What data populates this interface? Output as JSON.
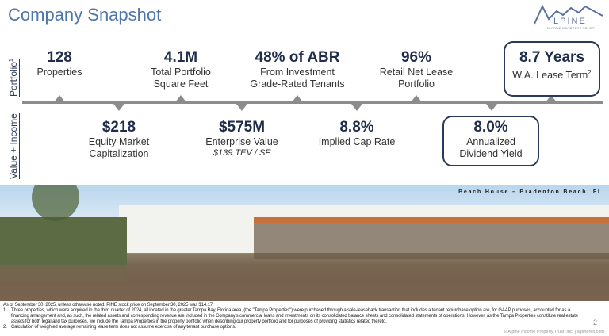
{
  "header": {
    "title": "Company Snapshot",
    "logo_text": "ALPINE",
    "logo_subtitle": "INCOME PROPERTY TRUST"
  },
  "side_labels": {
    "portfolio": "Portfolio",
    "portfolio_sup": "1",
    "value_income": "Value + Income"
  },
  "portfolio_metrics": [
    {
      "value": "128",
      "label": "Properties"
    },
    {
      "value": "4.1M",
      "label": "Total Portfolio Square Feet"
    },
    {
      "value": "48% of ABR",
      "label": "From Investment Grade-Rated Tenants"
    },
    {
      "value": "96%",
      "label": "Retail Net Lease Portfolio"
    },
    {
      "value": "8.7 Years",
      "label": "W.A. Lease Term",
      "sup": "2"
    }
  ],
  "value_metrics": [
    {
      "value": "$218",
      "label": "Equity Market Capitalization"
    },
    {
      "value": "$575M",
      "label": "Enterprise Value",
      "sub": "$139 TEV / SF"
    },
    {
      "value": "8.8%",
      "label": "Implied Cap Rate"
    },
    {
      "value": "8.0%",
      "label": "Annualized Dividend Yield"
    }
  ],
  "photo": {
    "caption": "Beach House – Bradenton Beach, FL"
  },
  "footnotes": {
    "intro": "As of September 30, 2025, unless otherwise noted. PINE stock price on September 30, 2025 was $14.17.",
    "n1": "1.",
    "f1": "Three properties, which were acquired in the third quarter of 2024, all located in the greater Tampa Bay, Florida area, (the \"Tampa Properties\") were purchased through a sale-leaseback transaction that includes a tenant repurchase option are, for GAAP purposes, accounted for as a financing arrangement and, as such, the related assets and corresponding revenue are included in the Company's commercial loans and investments on its consolidated balance sheets and consolidated statements of operations. However, as the Tampa Properties constitute real estate assets for both legal and tax purposes, we include the Tampa Properties in the property portfolio when describing our property portfolio and for purposes of providing statistics related thereto.",
    "n2": "2.",
    "f2": "Calculation of weighted average remaining lease term does not assume exercise of any tenant purchase options."
  },
  "page_number": "2",
  "copyright": "© Alpine Income Property Trust, Inc. | alpinereit.com"
}
